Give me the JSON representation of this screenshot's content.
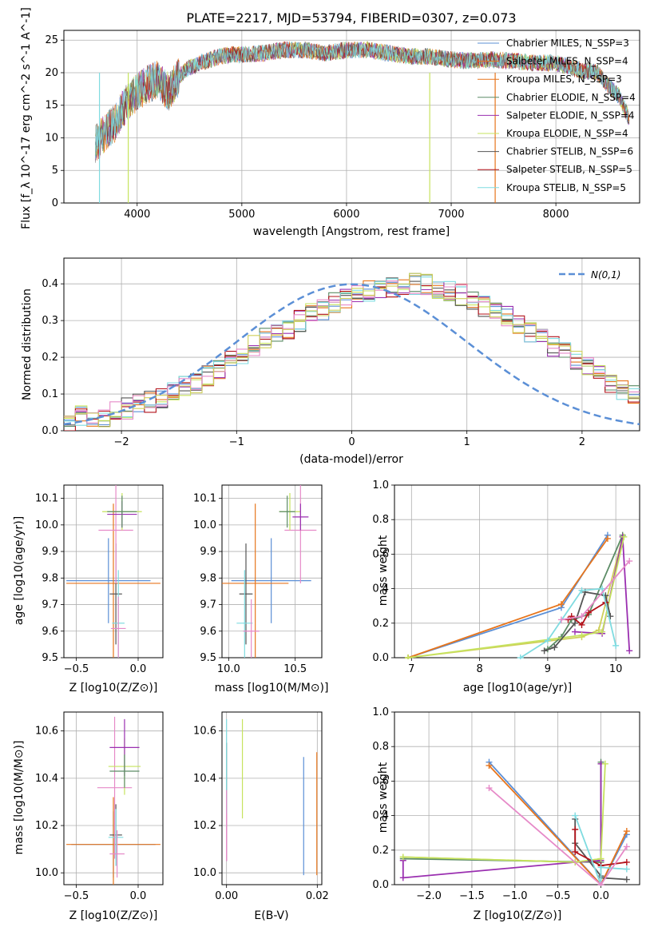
{
  "title": "PLATE=2217, MJD=53794, FIBERID=0307, z=0.073",
  "palette": [
    "#5b8fd6",
    "#e7751c",
    "#cfcf5a",
    "#5c8c66",
    "#9a2fb0",
    "#c6e35e",
    "#555555",
    "#b3121a",
    "#7fdbe0",
    "#e68ac8",
    "#c58a6a"
  ],
  "panels": {
    "spectrum": {
      "xlabel": "wavelength [Angstrom, rest frame]",
      "ylabel": "Flux [f_λ 10^-17 erg cm^-2 s^-1 A^-1]",
      "xticks": [
        "4000",
        "5000",
        "6000",
        "7000",
        "8000"
      ],
      "yticks": [
        "0",
        "5",
        "10",
        "15",
        "20",
        "25"
      ],
      "legend": [
        "Chabrier MILES, N_SSP=3",
        "Salpeter MILES, N_SSP=4",
        "Kroupa MILES, N_SSP=3",
        "Chabrier ELODIE, N_SSP=4",
        "Salpeter ELODIE, N_SSP=4",
        "Kroupa ELODIE, N_SSP=4",
        "Chabrier STELIB, N_SSP=6",
        "Salpeter STELIB, N_SSP=5",
        "Kroupa STELIB, N_SSP=5"
      ]
    },
    "residuals": {
      "xlabel": "(data-model)/error",
      "ylabel": "Normed distribution",
      "xticks": [
        "−2",
        "−1",
        "0",
        "1",
        "2"
      ],
      "yticks": [
        "0.0",
        "0.1",
        "0.2",
        "0.3",
        "0.4"
      ],
      "legend_label": "N(0,1)"
    },
    "age_z": {
      "xlabel": "Z [log10(Z/Z⊙)]",
      "ylabel": "age  [log10(age/yr)]",
      "xticks": [
        "−0.5",
        "0.0"
      ],
      "yticks": [
        "9.5",
        "9.6",
        "9.7",
        "9.8",
        "9.9",
        "10.0",
        "10.1"
      ]
    },
    "age_mass": {
      "xlabel": "mass [log10(M/M⊙)]",
      "xticks": [
        "10.0",
        "10.5"
      ],
      "yticks": [
        "9.5",
        "9.6",
        "9.7",
        "9.8",
        "9.9",
        "10.0",
        "10.1"
      ]
    },
    "mw_age": {
      "xlabel": "age  [log10(age/yr)]",
      "ylabel": "mass weight",
      "xticks": [
        "7",
        "8",
        "9",
        "10"
      ],
      "yticks": [
        "0.0",
        "0.2",
        "0.4",
        "0.6",
        "0.8",
        "1.0"
      ]
    },
    "mass_z": {
      "xlabel": "Z [log10(Z/Z⊙)]",
      "ylabel": "mass [log10(M/M⊙)]",
      "xticks": [
        "−0.5",
        "0.0"
      ],
      "yticks": [
        "10.0",
        "10.2",
        "10.4",
        "10.6"
      ]
    },
    "mass_ebv": {
      "xlabel": "E(B-V)",
      "xticks": [
        "0.00",
        "0.02"
      ],
      "yticks": [
        "10.0",
        "10.2",
        "10.4",
        "10.6"
      ]
    },
    "mw_z": {
      "xlabel": "Z [log10(Z/Z⊙)]",
      "ylabel": "mass weight",
      "xticks": [
        "−2.0",
        "−1.5",
        "−1.0",
        "−0.5",
        "0.0"
      ],
      "yticks": [
        "0.0",
        "0.2",
        "0.4",
        "0.6",
        "0.8",
        "1.0"
      ]
    }
  },
  "chart_data": [
    {
      "type": "line",
      "title": "PLATE=2217, MJD=53794, FIBERID=0307, z=0.073",
      "xlabel": "wavelength [Angstrom, rest frame]",
      "ylabel": "Flux [f_λ 10^-17 erg cm^-2 s^-1 A^-1]",
      "xlim": [
        3300,
        8800
      ],
      "ylim": [
        0,
        26.5
      ],
      "x": [
        3600,
        3700,
        3800,
        3900,
        4000,
        4100,
        4200,
        4300,
        4400,
        4500,
        4600,
        4700,
        4800,
        4900,
        5000,
        5200,
        5400,
        5600,
        5800,
        6000,
        6200,
        6400,
        6600,
        6800,
        7000,
        7200,
        7400,
        7600,
        7800,
        8000,
        8200,
        8400,
        8500,
        8600,
        8700
      ],
      "y": [
        9,
        11,
        12.5,
        15.5,
        17,
        18.2,
        19,
        17,
        19.5,
        20.8,
        21.5,
        22,
        22.5,
        22.8,
        22.8,
        23,
        23.5,
        23.5,
        23,
        23.5,
        23.5,
        23,
        22.5,
        22.5,
        22,
        21.8,
        22,
        21.8,
        21.5,
        21.5,
        20.5,
        20,
        18,
        16.5,
        13
      ]
    },
    {
      "type": "bar",
      "xlabel": "(data-model)/error",
      "ylabel": "Normed distribution",
      "xlim": [
        -2.5,
        2.5
      ],
      "ylim": [
        0,
        0.47
      ],
      "bin_edges_start": -2.5,
      "bin_width": 0.1,
      "values": [
        0.02,
        0.04,
        0.03,
        0.04,
        0.05,
        0.06,
        0.07,
        0.08,
        0.09,
        0.11,
        0.12,
        0.13,
        0.15,
        0.17,
        0.19,
        0.21,
        0.23,
        0.25,
        0.27,
        0.28,
        0.3,
        0.32,
        0.33,
        0.35,
        0.36,
        0.37,
        0.38,
        0.39,
        0.39,
        0.4,
        0.4,
        0.4,
        0.39,
        0.38,
        0.37,
        0.36,
        0.34,
        0.33,
        0.31,
        0.29,
        0.27,
        0.25,
        0.23,
        0.21,
        0.19,
        0.17,
        0.15,
        0.13,
        0.11,
        0.1
      ],
      "reference_curve": "N(0,1)"
    },
    {
      "type": "scatter",
      "xlabel": "Z [log10(Z/Z⊙)]",
      "ylabel": "age  [log10(age/yr)]",
      "xlim": [
        -0.6,
        0.2
      ],
      "ylim": [
        9.5,
        10.15
      ],
      "points": [
        {
          "x": -0.24,
          "y": 9.79,
          "xerr": 0.34,
          "yerr": 0.16
        },
        {
          "x": -0.2,
          "y": 9.78,
          "xerr": 0.38,
          "yerr": 0.3
        },
        {
          "x": -0.18,
          "y": 9.74,
          "xerr": 0.05,
          "yerr": 0.19
        },
        {
          "x": -0.16,
          "y": 9.63,
          "xerr": 0.05,
          "yerr": 0.2
        },
        {
          "x": -0.16,
          "y": 9.61,
          "xerr": 0.06,
          "yerr": 0.12
        },
        {
          "x": -0.18,
          "y": 9.98,
          "xerr": 0.14,
          "yerr": 0.2
        },
        {
          "x": -0.13,
          "y": 10.05,
          "xerr": 0.16,
          "yerr": 0.07
        },
        {
          "x": -0.13,
          "y": 10.04,
          "xerr": 0.12,
          "yerr": 0.05
        },
        {
          "x": -0.13,
          "y": 10.05,
          "xerr": 0.12,
          "yerr": 0.06
        }
      ]
    },
    {
      "type": "scatter",
      "xlabel": "mass [log10(M/M⊙)]",
      "xlim": [
        9.95,
        10.7
      ],
      "ylim": [
        9.5,
        10.15
      ],
      "points": [
        {
          "x": 10.32,
          "y": 9.79,
          "xerr": 0.3,
          "yerr": 0.16
        },
        {
          "x": 10.2,
          "y": 9.78,
          "xerr": 0.25,
          "yerr": 0.3
        },
        {
          "x": 10.13,
          "y": 9.74,
          "xerr": 0.05,
          "yerr": 0.19
        },
        {
          "x": 10.12,
          "y": 9.63,
          "xerr": 0.06,
          "yerr": 0.2
        },
        {
          "x": 10.17,
          "y": 9.6,
          "xerr": 0.06,
          "yerr": 0.12
        },
        {
          "x": 10.54,
          "y": 9.98,
          "xerr": 0.12,
          "yerr": 0.2
        },
        {
          "x": 10.46,
          "y": 10.05,
          "xerr": 0.08,
          "yerr": 0.07
        },
        {
          "x": 10.54,
          "y": 10.03,
          "xerr": 0.06,
          "yerr": 0.05
        },
        {
          "x": 10.44,
          "y": 10.05,
          "xerr": 0.06,
          "yerr": 0.06
        }
      ]
    },
    {
      "type": "line",
      "xlabel": "age  [log10(age/yr)]",
      "ylabel": "mass weight",
      "xlim": [
        6.75,
        10.35
      ],
      "ylim": [
        0,
        1
      ],
      "series": [
        {
          "x": [
            6.95,
            9.2,
            9.88
          ],
          "y": [
            0.0,
            0.29,
            0.71
          ]
        },
        {
          "x": [
            6.95,
            9.2,
            9.88
          ],
          "y": [
            0.0,
            0.31,
            0.69
          ]
        },
        {
          "x": [
            6.95,
            9.5,
            9.75,
            10.1
          ],
          "y": [
            0.0,
            0.12,
            0.16,
            0.7
          ]
        },
        {
          "x": [
            9.0,
            9.2,
            9.35,
            9.6,
            10.1
          ],
          "y": [
            0.05,
            0.12,
            0.22,
            0.25,
            0.71
          ]
        },
        {
          "x": [
            9.4,
            9.8,
            10.1,
            10.2
          ],
          "y": [
            0.15,
            0.14,
            0.7,
            0.04
          ]
        },
        {
          "x": [
            6.95,
            9.5,
            9.8,
            10.12
          ],
          "y": [
            0.0,
            0.13,
            0.15,
            0.7
          ]
        },
        {
          "x": [
            8.95,
            9.1,
            9.4,
            9.55,
            9.85,
            9.92
          ],
          "y": [
            0.04,
            0.06,
            0.2,
            0.38,
            0.36,
            0.24
          ]
        },
        {
          "x": [
            9.3,
            9.35,
            9.5,
            9.6,
            9.85
          ],
          "y": [
            0.22,
            0.24,
            0.19,
            0.26,
            0.32
          ]
        },
        {
          "x": [
            8.6,
            9.0,
            9.5,
            9.8,
            10.0
          ],
          "y": [
            0.0,
            0.1,
            0.39,
            0.4,
            0.07
          ]
        },
        {
          "x": [
            9.2,
            9.5,
            10.2
          ],
          "y": [
            0.22,
            0.24,
            0.56
          ]
        }
      ]
    },
    {
      "type": "scatter",
      "xlabel": "Z [log10(Z/Z⊙)]",
      "ylabel": "mass [log10(M/M⊙)]",
      "xlim": [
        -0.6,
        0.2
      ],
      "ylim": [
        9.95,
        10.68
      ],
      "points": [
        {
          "x": -0.2,
          "y": 10.12,
          "xerr": 0.34,
          "yerr": 0.14
        },
        {
          "x": -0.2,
          "y": 10.12,
          "xerr": 0.38,
          "yerr": 0.2
        },
        {
          "x": -0.18,
          "y": 10.16,
          "xerr": 0.05,
          "yerr": 0.13
        },
        {
          "x": -0.18,
          "y": 10.15,
          "xerr": 0.06,
          "yerr": 0.12
        },
        {
          "x": -0.17,
          "y": 10.08,
          "xerr": 0.06,
          "yerr": 0.1
        },
        {
          "x": -0.19,
          "y": 10.36,
          "xerr": 0.14,
          "yerr": 0.3
        },
        {
          "x": -0.11,
          "y": 10.45,
          "xerr": 0.13,
          "yerr": 0.12
        },
        {
          "x": -0.11,
          "y": 10.53,
          "xerr": 0.12,
          "yerr": 0.12
        },
        {
          "x": -0.11,
          "y": 10.43,
          "xerr": 0.12,
          "yerr": 0.07
        }
      ]
    },
    {
      "type": "scatter",
      "xlabel": "E(B-V)",
      "xlim": [
        -0.001,
        0.021
      ],
      "ylim": [
        9.95,
        10.68
      ],
      "points": [
        {
          "x": 0.017,
          "y": 10.24,
          "yerr": 0.25
        },
        {
          "x": 0.0199,
          "y": 10.25,
          "yerr": 0.26
        },
        {
          "x": 0.0,
          "y": 10.3,
          "yerr": 0.25
        },
        {
          "x": 0.0,
          "y": 10.45,
          "yerr": 0.2
        },
        {
          "x": 0.0,
          "y": 10.15,
          "yerr": 0.1
        },
        {
          "x": 0.0,
          "y": 10.2,
          "yerr": 0.15
        },
        {
          "x": 0.0035,
          "y": 10.44,
          "yerr": 0.21
        }
      ]
    },
    {
      "type": "line",
      "xlabel": "Z [log10(Z/Z⊙)]",
      "ylabel": "mass weight",
      "xlim": [
        -2.4,
        0.45
      ],
      "ylim": [
        0,
        1
      ],
      "series": [
        {
          "x": [
            -1.3,
            0.0,
            0.3
          ],
          "y": [
            0.71,
            0.0,
            0.29
          ]
        },
        {
          "x": [
            -1.3,
            0.0,
            0.3
          ],
          "y": [
            0.69,
            0.0,
            0.31
          ]
        },
        {
          "x": [
            -2.3,
            -0.3,
            0.0,
            0.0
          ],
          "y": [
            0.16,
            0.13,
            0.15,
            0.7
          ]
        },
        {
          "x": [
            -2.3,
            0.0,
            0.0
          ],
          "y": [
            0.15,
            0.13,
            0.71
          ]
        },
        {
          "x": [
            -2.3,
            -2.3,
            -0.3,
            0.0,
            0.0
          ],
          "y": [
            0.14,
            0.04,
            0.13,
            0.14,
            0.7
          ]
        },
        {
          "x": [
            -2.3,
            -0.3,
            0.0,
            0.05
          ],
          "y": [
            0.16,
            0.13,
            0.15,
            0.7
          ]
        },
        {
          "x": [
            -0.3,
            -0.3,
            0.0,
            0.0,
            0.3
          ],
          "y": [
            0.38,
            0.24,
            0.05,
            0.04,
            0.03
          ]
        },
        {
          "x": [
            -0.3,
            -0.3,
            0.0,
            0.3
          ],
          "y": [
            0.32,
            0.19,
            0.11,
            0.13
          ]
        },
        {
          "x": [
            -0.3,
            0.0,
            0.0,
            0.3
          ],
          "y": [
            0.4,
            0.0,
            0.1,
            0.09
          ]
        },
        {
          "x": [
            -1.3,
            0.0,
            0.3
          ],
          "y": [
            0.56,
            0.0,
            0.22
          ]
        }
      ]
    }
  ]
}
